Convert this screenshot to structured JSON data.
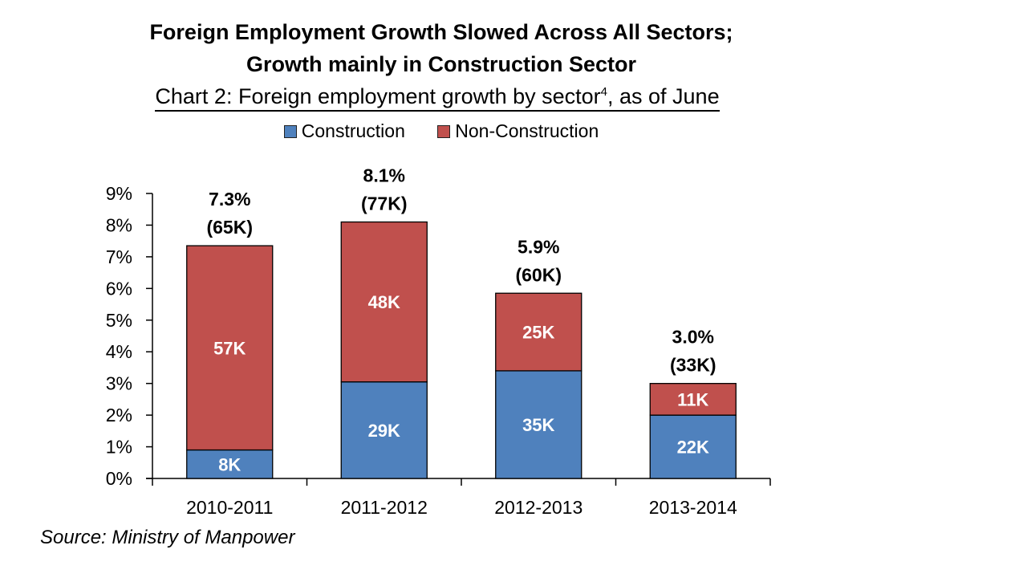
{
  "chart_data": {
    "type": "bar",
    "stacked": true,
    "title_line1": "Foreign Employment Growth Slowed Across All Sectors;",
    "title_line2": "Growth mainly  in Construction Sector",
    "subtitle_text": "Chart 2:  Foreign employment growth by sector",
    "subtitle_sup": "4",
    "subtitle_tail": ", as of June",
    "categories": [
      "2010-2011",
      "2011-2012",
      "2012-2013",
      "2013-2014"
    ],
    "series": [
      {
        "name": "Construction",
        "color": "#4f81bd",
        "values": [
          0.9,
          3.05,
          3.4,
          2.0
        ],
        "labels": [
          "8K",
          "29K",
          "35K",
          "22K"
        ]
      },
      {
        "name": "Non-Construction",
        "color": "#c0504d",
        "values": [
          6.45,
          5.05,
          2.45,
          1.0
        ],
        "labels": [
          "57K",
          "48K",
          "25K",
          "11K"
        ]
      }
    ],
    "totals": [
      {
        "pct": "7.3%",
        "count": "(65K)"
      },
      {
        "pct": "8.1%",
        "count": "(77K)"
      },
      {
        "pct": "5.9%",
        "count": "(60K)"
      },
      {
        "pct": "3.0%",
        "count": "(33K)"
      }
    ],
    "ylim": [
      0,
      9
    ],
    "yticks": [
      0,
      1,
      2,
      3,
      4,
      5,
      6,
      7,
      8,
      9
    ],
    "ytick_labels": [
      "0%",
      "1%",
      "2%",
      "3%",
      "4%",
      "5%",
      "6%",
      "7%",
      "8%",
      "9%"
    ],
    "xlabel": "",
    "ylabel": "",
    "grid": false,
    "legend_position": "top",
    "source": "Source: Ministry of Manpower"
  }
}
